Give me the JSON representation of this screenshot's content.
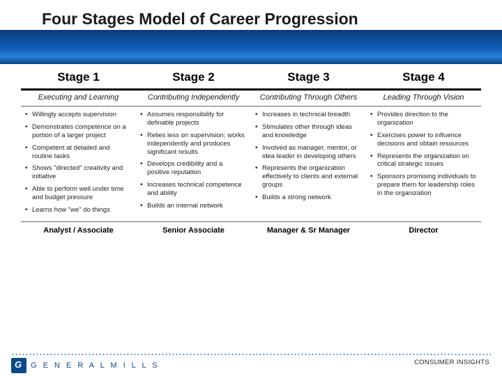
{
  "title": "Four Stages Model of Career Progression",
  "stages": [
    {
      "head": "Stage 1",
      "subtitle": "Executing and Learning",
      "bullets": [
        "Willingly accepts supervision",
        "Demonstrates competence on a portion of a larger project",
        "Competent at detailed and routine tasks",
        "Shows \"directed\" creativity and initiative",
        "Able to perform well under time and budget pressure",
        "Learns how \"we\" do things"
      ],
      "role": "Analyst / Associate"
    },
    {
      "head": "Stage 2",
      "subtitle": "Contributing Independently",
      "bullets": [
        "Assumes responsibility for definable projects",
        "Relies less on supervision; works independently and produces significant results",
        "Develops credibility and a positive reputation",
        "Increases technical competence and ability",
        "Builds an internal network"
      ],
      "role": "Senior Associate"
    },
    {
      "head": "Stage 3",
      "subtitle": "Contributing Through Others",
      "bullets": [
        "Increases in technical breadth",
        "Stimulates other through ideas and knowledge",
        "Involved as manager, mentor, or idea leader in developing others",
        "Represents the organization effectively to clients and external groups",
        "Builds a strong network"
      ],
      "role": "Manager & Sr Manager"
    },
    {
      "head": "Stage 4",
      "subtitle": "Leading Through Vision",
      "bullets": [
        "Provides direction to the organization",
        "Exercises power to influence decisions and obtain resources",
        "Represents the organization on critical strategic issues",
        "Sponsors promising individuals to prepare them for leadership roles in the organization"
      ],
      "role": "Director"
    }
  ],
  "footer": {
    "company": "G E N E R A L   M I L L S",
    "dept": "CONSUMER INSIGHTS"
  },
  "colors": {
    "brand_blue": "#0a4a8a",
    "gradient_mid": "#1060b8",
    "text": "#222222"
  }
}
